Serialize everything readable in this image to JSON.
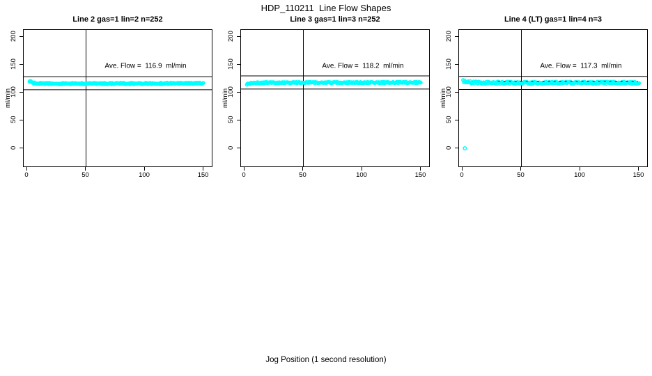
{
  "figure": {
    "title": "HDP_110211  Line Flow Shapes",
    "xlabel": "Jog Position (1 second resolution)",
    "background": "#ffffff"
  },
  "chart_data": [
    {
      "type": "scatter",
      "title": "Line 2 gas=1 lin=2 n=252",
      "params": {
        "line": 2,
        "gas": 1,
        "lin": 2,
        "n": 252
      },
      "annotation": "Ave. Flow =  116.9  ml/min",
      "ave_flow": 116.9,
      "unit": "ml/min",
      "ylabel": "ml/min",
      "x_ticks": [
        0,
        50,
        100,
        150
      ],
      "y_ticks": [
        0,
        50,
        100,
        150,
        200
      ],
      "xlim": [
        0,
        155
      ],
      "ylim": [
        -35,
        212
      ],
      "grid": false,
      "legend": null,
      "point_color": "#00ffff",
      "vline_x": 50,
      "tolerance_lines": [
        128.6,
        105.2
      ],
      "band": {
        "x_start": 2,
        "x_end": 150,
        "half_width": 1.3,
        "profile": [
          [
            2,
            120.8
          ],
          [
            3.5,
            118.6
          ],
          [
            6,
            117.0
          ],
          [
            10,
            116.4
          ],
          [
            25,
            116.1
          ],
          [
            80,
            116.3
          ],
          [
            150,
            116.6
          ]
        ]
      },
      "outliers": []
    },
    {
      "type": "scatter",
      "title": "Line 3 gas=1 lin=3 n=252",
      "params": {
        "line": 3,
        "gas": 1,
        "lin": 3,
        "n": 252
      },
      "annotation": "Ave. Flow =  118.2  ml/min",
      "ave_flow": 118.2,
      "unit": "ml/min",
      "ylabel": "ml/min",
      "x_ticks": [
        0,
        50,
        100,
        150
      ],
      "y_ticks": [
        0,
        50,
        100,
        150,
        200
      ],
      "xlim": [
        0,
        155
      ],
      "ylim": [
        -35,
        212
      ],
      "grid": false,
      "legend": null,
      "point_color": "#00ffff",
      "vline_x": 50,
      "tolerance_lines": [
        130.0,
        106.4
      ],
      "band": {
        "x_start": 2,
        "x_end": 150,
        "half_width": 1.3,
        "profile": [
          [
            2,
            114.8
          ],
          [
            4,
            116.2
          ],
          [
            8,
            117.3
          ],
          [
            20,
            117.8
          ],
          [
            80,
            118.0
          ],
          [
            150,
            118.1
          ]
        ]
      },
      "outliers": []
    },
    {
      "type": "scatter",
      "title": "Line 4 (LT) gas=1 lin=4 n=3",
      "params": {
        "line": 4,
        "lt": true,
        "gas": 1,
        "lin": 4,
        "n": 3
      },
      "annotation": "Ave. Flow =  117.3  ml/min",
      "ave_flow": 117.3,
      "unit": "ml/min",
      "ylabel": "ml/min",
      "x_ticks": [
        0,
        50,
        100,
        150
      ],
      "y_ticks": [
        0,
        50,
        100,
        150,
        200
      ],
      "xlim": [
        0,
        155
      ],
      "ylim": [
        -35,
        212
      ],
      "grid": false,
      "legend": null,
      "point_color": "#00ffff",
      "vline_x": 50,
      "tolerance_lines": [
        129.0,
        105.6
      ],
      "band": {
        "x_start": 0.5,
        "x_end": 150,
        "half_width": 2.0,
        "profile": [
          [
            0.5,
            120.5
          ],
          [
            4,
            118.9
          ],
          [
            12,
            118.1
          ],
          [
            40,
            117.7
          ],
          [
            150,
            117.6
          ]
        ]
      },
      "band_top_dash": {
        "y": 120.3,
        "x_start": 30,
        "x_end": 149
      },
      "outliers": [
        [
          2,
          0
        ]
      ]
    }
  ]
}
